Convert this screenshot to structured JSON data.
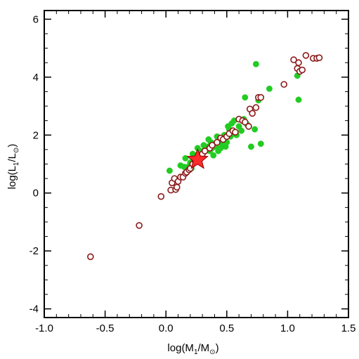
{
  "chart_data": {
    "type": "scatter",
    "title": "",
    "xlabel": "log(M₁/M⊙)",
    "ylabel": "log(L₁/L⊙)",
    "xlabel_parts": {
      "pre": "log(M",
      "sub": "1",
      "mid": "/M",
      "sub2": "⊙",
      "post": ")"
    },
    "ylabel_parts": {
      "pre": "log(L",
      "sub": "1",
      "mid": "/L",
      "sub2": "⊙",
      "post": ")"
    },
    "xlim": [
      -1.0,
      1.5
    ],
    "ylim": [
      -4.3,
      6.3
    ],
    "x_major_ticks": [
      -1.0,
      -0.5,
      0.0,
      0.5,
      1.0,
      1.5
    ],
    "x_tick_labels": [
      "-1.0",
      "-0.5",
      "0.0",
      "0.5",
      "1.0",
      "1.5"
    ],
    "x_minor_step": 0.1,
    "y_major_ticks": [
      -4,
      -2,
      0,
      2,
      4,
      6
    ],
    "y_tick_labels": [
      "-4",
      "-2",
      "0",
      "2",
      "4",
      "6"
    ],
    "y_minor_step": 0.5,
    "grid": false,
    "colors": {
      "open": "#8b1a1a",
      "filled": "#22cc22",
      "star": "#ff2a2a",
      "star_edge": "#8b0000",
      "axis": "#000000"
    },
    "series": [
      {
        "marker": "open-circle",
        "x": [
          -0.62,
          -0.22,
          -0.04,
          0.04,
          0.05,
          0.08,
          0.09,
          0.07,
          0.1,
          0.12,
          0.14,
          0.16,
          0.17,
          0.19,
          0.2,
          0.22,
          0.24,
          0.26,
          0.28,
          0.3,
          0.32,
          0.36,
          0.38,
          0.42,
          0.45,
          0.47,
          0.5,
          0.52,
          0.55,
          0.57,
          0.6,
          0.63,
          0.65,
          0.68,
          0.69,
          0.71,
          0.74,
          0.76,
          0.78,
          0.97,
          1.05,
          1.08,
          1.09,
          1.1,
          1.12,
          1.15,
          1.21,
          1.24,
          1.26
        ],
        "y": [
          -2.2,
          -1.12,
          -0.12,
          0.1,
          0.35,
          0.12,
          0.2,
          0.5,
          0.4,
          0.55,
          0.55,
          0.68,
          0.72,
          0.8,
          0.85,
          1.0,
          1.1,
          1.2,
          1.25,
          1.35,
          1.45,
          1.55,
          1.65,
          1.75,
          1.9,
          1.85,
          1.95,
          2.05,
          2.15,
          2.1,
          2.55,
          2.5,
          2.45,
          2.3,
          2.9,
          2.75,
          2.95,
          3.3,
          3.3,
          3.75,
          4.6,
          4.3,
          4.5,
          4.2,
          4.25,
          4.75,
          4.65,
          4.65,
          4.67
        ]
      },
      {
        "marker": "filled-circle",
        "x": [
          0.03,
          0.12,
          0.15,
          0.16,
          0.18,
          0.2,
          0.21,
          0.22,
          0.24,
          0.26,
          0.28,
          0.3,
          0.31,
          0.32,
          0.34,
          0.35,
          0.36,
          0.37,
          0.38,
          0.39,
          0.4,
          0.41,
          0.42,
          0.43,
          0.44,
          0.45,
          0.46,
          0.47,
          0.48,
          0.49,
          0.5,
          0.51,
          0.52,
          0.53,
          0.54,
          0.55,
          0.56,
          0.57,
          0.58,
          0.6,
          0.62,
          0.64,
          0.65,
          0.66,
          0.67,
          0.7,
          0.73,
          0.74,
          0.76,
          0.78,
          0.85,
          1.08,
          1.09,
          1.1
        ],
        "y": [
          0.77,
          0.95,
          0.9,
          1.2,
          0.9,
          1.05,
          0.85,
          1.35,
          1.3,
          1.55,
          1.45,
          1.4,
          1.65,
          1.5,
          1.6,
          1.85,
          1.45,
          1.75,
          1.55,
          1.3,
          1.7,
          1.6,
          1.95,
          1.45,
          1.8,
          1.55,
          1.7,
          1.85,
          2.0,
          1.6,
          1.75,
          2.3,
          2.2,
          1.95,
          2.4,
          2.05,
          2.5,
          2.1,
          2.0,
          2.3,
          2.15,
          2.55,
          3.3,
          2.4,
          2.35,
          1.6,
          2.2,
          4.45,
          3.2,
          1.7,
          3.6,
          4.05,
          3.22,
          4.2
        ]
      },
      {
        "marker": "star",
        "x": [
          0.26
        ],
        "y": [
          1.15
        ]
      }
    ]
  }
}
